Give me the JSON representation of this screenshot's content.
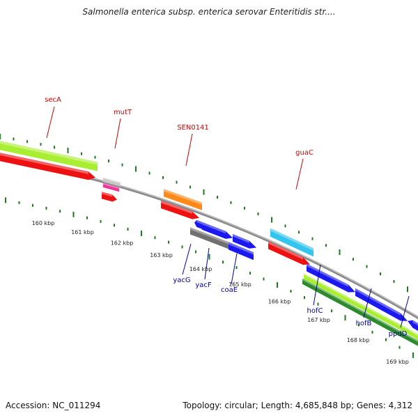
{
  "title": "Salmonella enterica subsp. enterica serovar Enteritidis str....",
  "footer": {
    "accession": "Accession: NC_011294",
    "stats": "Topology: circular; Length: 4,685,848 bp; Genes: 4,312"
  },
  "colors": {
    "tick": "#1e7a1e",
    "backbone": "#8a8a8a",
    "cds": "#ee1111",
    "lime": "#aaee33",
    "dark_green": "#2b8a2b",
    "blue": "#1a1aee",
    "gray": "#707070",
    "orange": "#ff8a1a",
    "cyan": "#33c5ee",
    "magenta": "#ee3399",
    "silver": "#c8c8c8",
    "label_top": "#cc0000",
    "label_bottom": "#000099"
  },
  "scale": {
    "ticks": [
      "160 kbp",
      "161 kbp",
      "162 kbp",
      "163 kbp",
      "164 kbp",
      "165 kbp",
      "166 kbp",
      "167 kbp",
      "168 kbp",
      "169 kbp"
    ]
  },
  "genes_top": [
    {
      "name": "secA",
      "color_key": "label_top"
    },
    {
      "name": "mutT",
      "color_key": "label_top"
    },
    {
      "name": "SEN0141",
      "color_key": "label_top"
    },
    {
      "name": "guaC",
      "color_key": "label_top"
    }
  ],
  "genes_bottom": [
    {
      "name": "yacG",
      "color_key": "label_bottom"
    },
    {
      "name": "yacF",
      "color_key": "label_bottom"
    },
    {
      "name": "coaE",
      "color_key": "label_bottom"
    },
    {
      "name": "hofC",
      "color_key": "label_bottom"
    },
    {
      "name": "hofB",
      "color_key": "label_bottom"
    },
    {
      "name": "ppdD",
      "color_key": "label_bottom"
    }
  ]
}
